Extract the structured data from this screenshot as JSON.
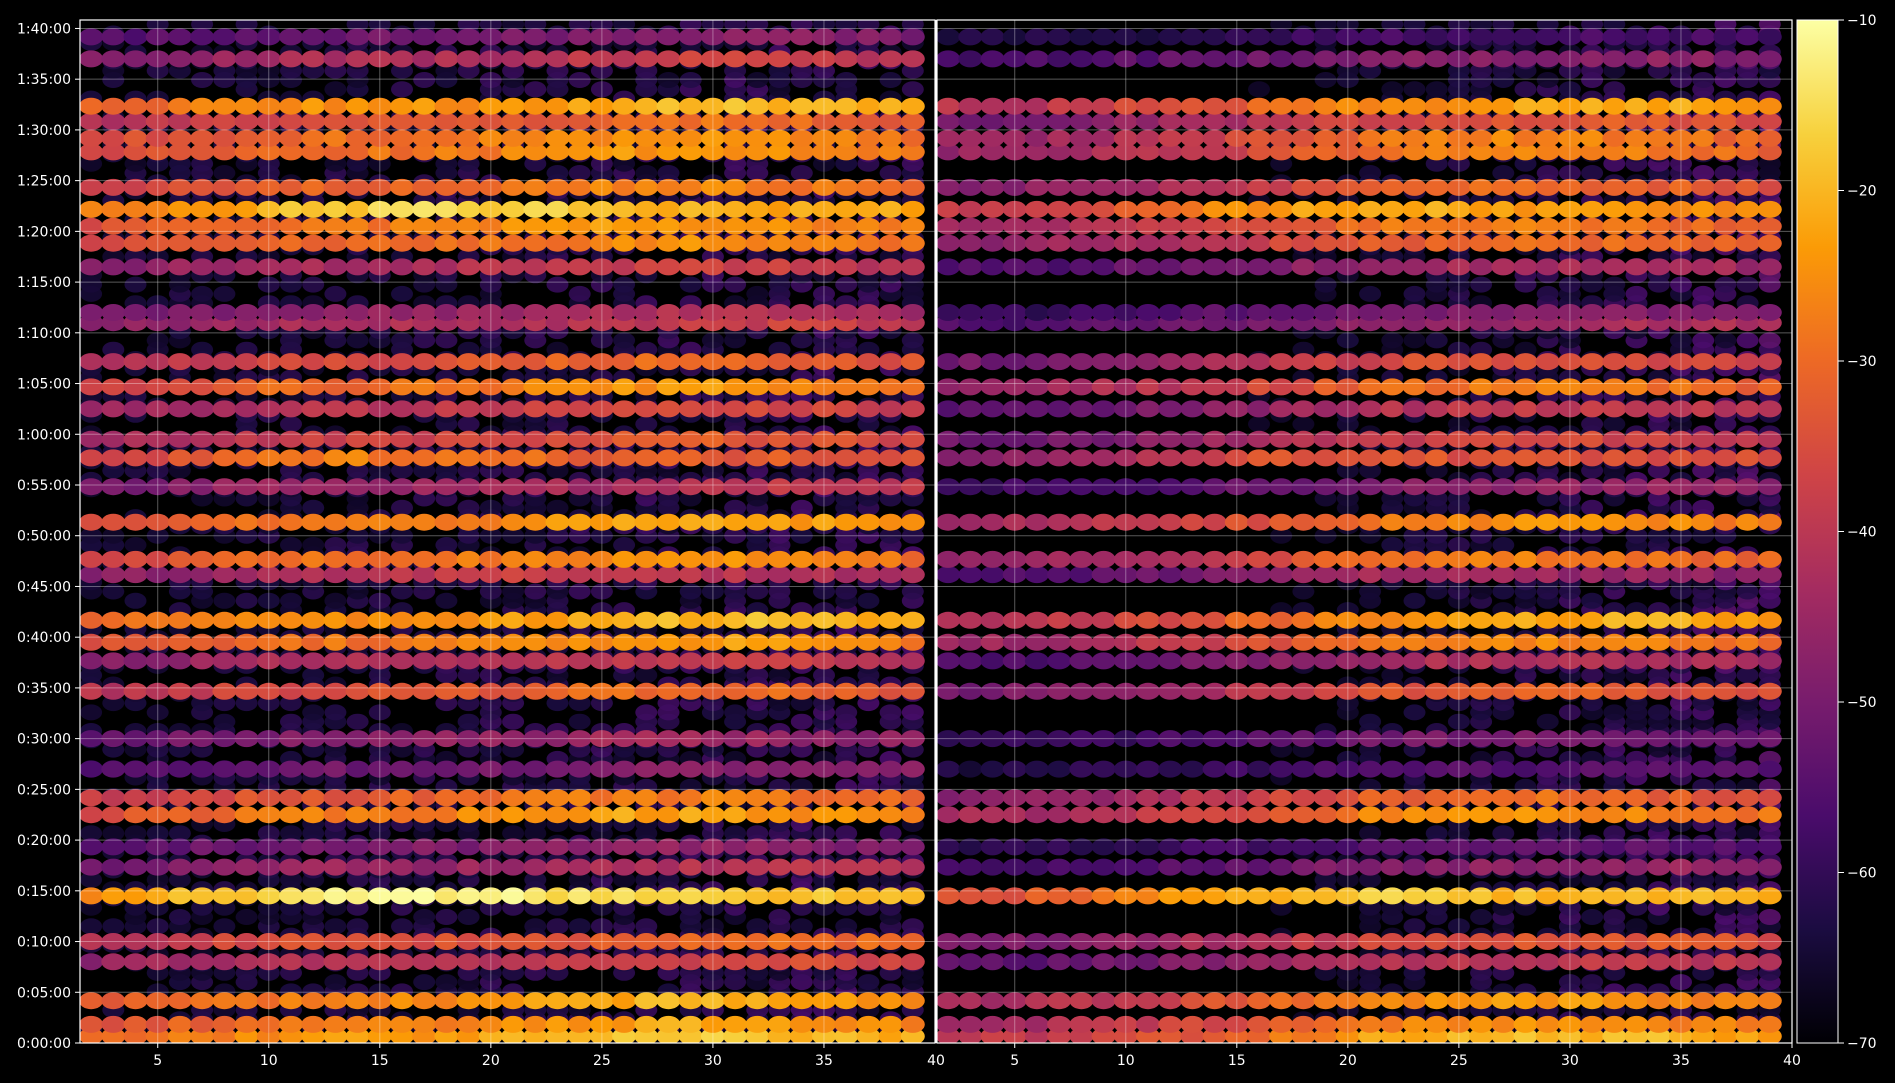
{
  "chart_data": {
    "type": "heatmap",
    "title": "",
    "xlabel": "",
    "ylabel": "",
    "grid": true,
    "background": "#000000",
    "colormap": "inferno",
    "colormap_stops": [
      "#000004",
      "#1b0c41",
      "#4a0c6b",
      "#781c6d",
      "#a52c60",
      "#cf4446",
      "#ed6925",
      "#fb9b06",
      "#f7d13d",
      "#fcffa4"
    ],
    "panels": [
      {
        "name": "left",
        "xlim": [
          1.5,
          40
        ],
        "xticks": [
          5,
          10,
          15,
          20,
          25,
          30,
          35
        ],
        "x_end_label": "40"
      },
      {
        "name": "right",
        "xlim": [
          1.5,
          40
        ],
        "xticks": [
          5,
          10,
          15,
          20,
          25,
          30,
          35,
          40
        ],
        "x_end_label": "40"
      }
    ],
    "ylim_seconds": [
      0,
      6050
    ],
    "y_ticks": [
      {
        "value": 0,
        "label": "0:00:00"
      },
      {
        "value": 300,
        "label": "0:05:00"
      },
      {
        "value": 600,
        "label": "0:10:00"
      },
      {
        "value": 900,
        "label": "0:15:00"
      },
      {
        "value": 1200,
        "label": "0:20:00"
      },
      {
        "value": 1500,
        "label": "0:25:00"
      },
      {
        "value": 1800,
        "label": "0:30:00"
      },
      {
        "value": 2100,
        "label": "0:35:00"
      },
      {
        "value": 2400,
        "label": "0:40:00"
      },
      {
        "value": 2700,
        "label": "0:45:00"
      },
      {
        "value": 3000,
        "label": "0:50:00"
      },
      {
        "value": 3300,
        "label": "0:55:00"
      },
      {
        "value": 3600,
        "label": "1:00:00"
      },
      {
        "value": 3900,
        "label": "1:05:00"
      },
      {
        "value": 4200,
        "label": "1:10:00"
      },
      {
        "value": 4500,
        "label": "1:15:00"
      },
      {
        "value": 4800,
        "label": "1:20:00"
      },
      {
        "value": 5100,
        "label": "1:25:00"
      },
      {
        "value": 5400,
        "label": "1:30:00"
      },
      {
        "value": 5700,
        "label": "1:35:00"
      },
      {
        "value": 6000,
        "label": "1:40:00"
      }
    ],
    "colorbar": {
      "range": [
        -70,
        -10
      ],
      "ticks": [
        {
          "value": -10,
          "label": "−10"
        },
        {
          "value": -20,
          "label": "−20"
        },
        {
          "value": -30,
          "label": "−30"
        },
        {
          "value": -40,
          "label": "−40"
        },
        {
          "value": -50,
          "label": "−50"
        },
        {
          "value": -60,
          "label": "−60"
        },
        {
          "value": -70,
          "label": "−70"
        }
      ]
    },
    "bands": [
      {
        "t": 40,
        "level": -24,
        "left_amp": 1.0,
        "right_amp": 0.95,
        "peak_x": 30
      },
      {
        "t": 110,
        "level": -28,
        "left_amp": 1.0,
        "right_amp": 0.9,
        "peak_x": 30
      },
      {
        "t": 250,
        "level": -27,
        "left_amp": 1.0,
        "right_amp": 0.92,
        "peak_x": 28
      },
      {
        "t": 480,
        "level": -38,
        "left_amp": 0.85,
        "right_amp": 0.7,
        "peak_x": 32
      },
      {
        "t": 600,
        "level": -33,
        "left_amp": 0.9,
        "right_amp": 0.75,
        "peak_x": 33
      },
      {
        "t": 870,
        "level": -18,
        "left_amp": 1.0,
        "right_amp": 0.85,
        "peak_x": 17
      },
      {
        "t": 1040,
        "level": -42,
        "left_amp": 0.8,
        "right_amp": 0.6,
        "peak_x": 33
      },
      {
        "t": 1160,
        "level": -45,
        "left_amp": 0.7,
        "right_amp": 0.4,
        "peak_x": 28
      },
      {
        "t": 1350,
        "level": -28,
        "left_amp": 1.0,
        "right_amp": 0.9,
        "peak_x": 28
      },
      {
        "t": 1450,
        "level": -32,
        "left_amp": 0.95,
        "right_amp": 0.85,
        "peak_x": 28
      },
      {
        "t": 1620,
        "level": -46,
        "left_amp": 0.7,
        "right_amp": 0.4,
        "peak_x": 33
      },
      {
        "t": 1800,
        "level": -44,
        "left_amp": 0.75,
        "right_amp": 0.5,
        "peak_x": 28
      },
      {
        "t": 2080,
        "level": -34,
        "left_amp": 0.95,
        "right_amp": 0.85,
        "peak_x": 28
      },
      {
        "t": 2260,
        "level": -40,
        "left_amp": 0.85,
        "right_amp": 0.7,
        "peak_x": 30
      },
      {
        "t": 2370,
        "level": -29,
        "left_amp": 1.0,
        "right_amp": 0.9,
        "peak_x": 30
      },
      {
        "t": 2500,
        "level": -25,
        "left_amp": 1.0,
        "right_amp": 0.92,
        "peak_x": 32
      },
      {
        "t": 2770,
        "level": -40,
        "left_amp": 0.85,
        "right_amp": 0.6,
        "peak_x": 22
      },
      {
        "t": 2860,
        "level": -30,
        "left_amp": 1.0,
        "right_amp": 0.85,
        "peak_x": 28
      },
      {
        "t": 3080,
        "level": -28,
        "left_amp": 1.0,
        "right_amp": 0.9,
        "peak_x": 30
      },
      {
        "t": 3290,
        "level": -42,
        "left_amp": 0.85,
        "right_amp": 0.6,
        "peak_x": 35
      },
      {
        "t": 3460,
        "level": -32,
        "left_amp": 0.95,
        "right_amp": 0.8,
        "peak_x": 15
      },
      {
        "t": 3570,
        "level": -36,
        "left_amp": 0.9,
        "right_amp": 0.75,
        "peak_x": 29
      },
      {
        "t": 3750,
        "level": -38,
        "left_amp": 0.85,
        "right_amp": 0.7,
        "peak_x": 30
      },
      {
        "t": 3880,
        "level": -30,
        "left_amp": 1.0,
        "right_amp": 0.85,
        "peak_x": 29
      },
      {
        "t": 4030,
        "level": -35,
        "left_amp": 0.95,
        "right_amp": 0.8,
        "peak_x": 28
      },
      {
        "t": 4260,
        "level": -40,
        "left_amp": 0.85,
        "right_amp": 0.65,
        "peak_x": 34
      },
      {
        "t": 4320,
        "level": -43,
        "left_amp": 0.8,
        "right_amp": 0.55,
        "peak_x": 30
      },
      {
        "t": 4590,
        "level": -40,
        "left_amp": 0.85,
        "right_amp": 0.65,
        "peak_x": 30
      },
      {
        "t": 4730,
        "level": -30,
        "left_amp": 0.95,
        "right_amp": 0.75,
        "peak_x": 30
      },
      {
        "t": 4830,
        "level": -28,
        "left_amp": 0.95,
        "right_amp": 0.8,
        "peak_x": 27
      },
      {
        "t": 4930,
        "level": -22,
        "left_amp": 1.0,
        "right_amp": 0.85,
        "peak_x": 18
      },
      {
        "t": 5060,
        "level": -32,
        "left_amp": 1.0,
        "right_amp": 0.85,
        "peak_x": 28
      },
      {
        "t": 5270,
        "level": -30,
        "left_amp": 1.0,
        "right_amp": 0.9,
        "peak_x": 28
      },
      {
        "t": 5350,
        "level": -30,
        "left_amp": 1.0,
        "right_amp": 0.9,
        "peak_x": 28
      },
      {
        "t": 5450,
        "level": -34,
        "left_amp": 0.95,
        "right_amp": 0.8,
        "peak_x": 30
      },
      {
        "t": 5540,
        "level": -25,
        "left_amp": 1.0,
        "right_amp": 0.9,
        "peak_x": 32
      },
      {
        "t": 5820,
        "level": -40,
        "left_amp": 0.85,
        "right_amp": 0.45,
        "peak_x": 31
      },
      {
        "t": 5950,
        "level": -46,
        "left_amp": 0.7,
        "right_amp": 0.3,
        "peak_x": 30
      }
    ]
  }
}
